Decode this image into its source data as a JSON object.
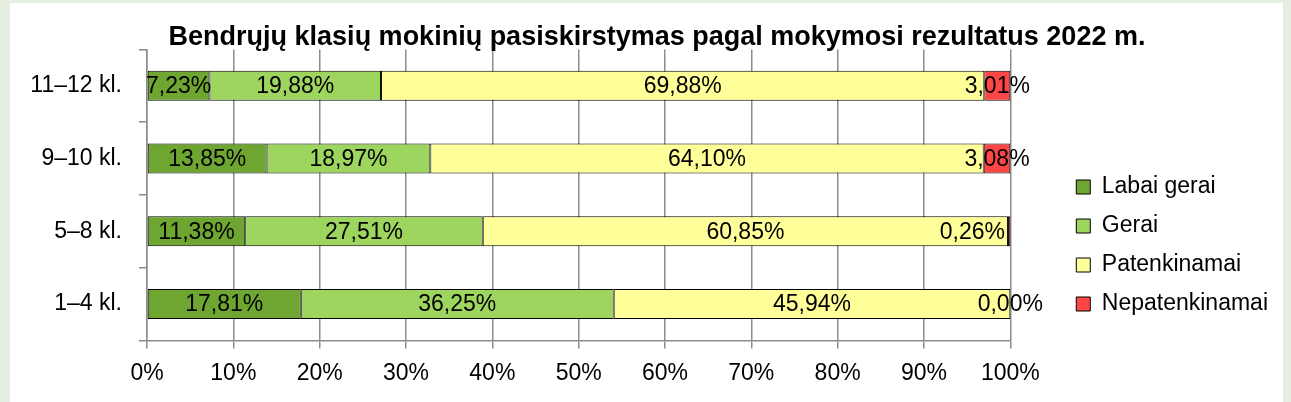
{
  "chart_data": {
    "type": "bar",
    "orientation": "horizontal",
    "stacked": true,
    "title": "Bendrųjų klasių mokinių pasiskirstymas pagal mokymosi rezultatus 2022 m.",
    "categories": [
      "11–12 kl.",
      "9–10 kl.",
      "5–8 kl.",
      "1–4 kl."
    ],
    "series": [
      {
        "name": "Labai gerai",
        "color": "#6ea631",
        "values": [
          7.23,
          13.85,
          11.38,
          17.81
        ],
        "value_labels": [
          "7,23%",
          "13,85%",
          "11,38%",
          "17,81%"
        ]
      },
      {
        "name": "Gerai",
        "color": "#9dd55f",
        "values": [
          19.88,
          18.97,
          27.51,
          36.25
        ],
        "value_labels": [
          "19,88%",
          "18,97%",
          "27,51%",
          "36,25%"
        ]
      },
      {
        "name": "Patenkinamai",
        "color": "#ffff99",
        "values": [
          69.88,
          64.1,
          60.85,
          45.94
        ],
        "value_labels": [
          "69,88%",
          "64,10%",
          "60,85%",
          "45,94%"
        ]
      },
      {
        "name": "Nepatenkinamai",
        "color": "#ff4646",
        "values": [
          3.01,
          3.08,
          0.26,
          0.0
        ],
        "value_labels": [
          "3,01%",
          "3,08%",
          "0,26%",
          "0,00%"
        ]
      }
    ],
    "xlim": [
      0,
      100
    ],
    "xticks": [
      {
        "value": 0,
        "label": "0%"
      },
      {
        "value": 10,
        "label": "10%"
      },
      {
        "value": 20,
        "label": "20%"
      },
      {
        "value": 30,
        "label": "30%"
      },
      {
        "value": 40,
        "label": "40%"
      },
      {
        "value": 50,
        "label": "50%"
      },
      {
        "value": 60,
        "label": "60%"
      },
      {
        "value": 70,
        "label": "70%"
      },
      {
        "value": 80,
        "label": "80%"
      },
      {
        "value": 90,
        "label": "90%"
      },
      {
        "value": 100,
        "label": "100%"
      }
    ],
    "grid": "x",
    "legend": "right"
  }
}
